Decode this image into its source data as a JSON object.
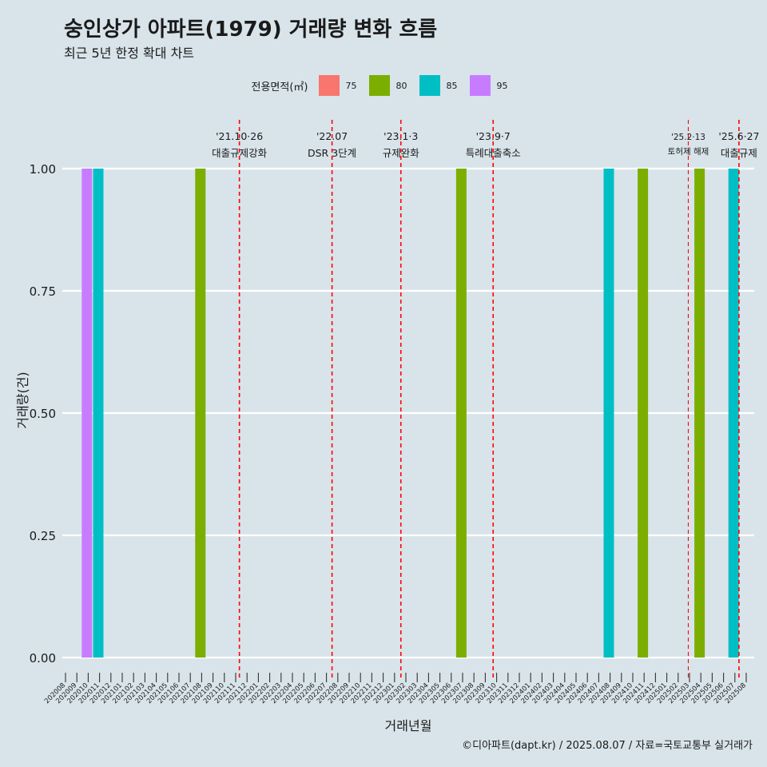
{
  "title": "숭인상가 아파트(1979) 거래량 변화 흐름",
  "subtitle": "최근 5년 한정 확대 차트",
  "caption": "©디아파트(dapt.kr) / 2025.08.07 / 자료=국토교통부 실거래가",
  "legend": {
    "title": "전용면적(㎡)",
    "items": [
      {
        "label": "75",
        "color": "#F8766D"
      },
      {
        "label": "80",
        "color": "#7CAE00"
      },
      {
        "label": "85",
        "color": "#00BFC4"
      },
      {
        "label": "95",
        "color": "#C77CFF"
      }
    ]
  },
  "chart_data": {
    "type": "bar",
    "xlabel": "거래년월",
    "ylabel": "거래량(건)",
    "ylim": [
      0,
      1
    ],
    "yticks": [
      "0.00",
      "0.25",
      "0.50",
      "0.75",
      "1.00"
    ],
    "grid": true,
    "legend_position": "top",
    "categories": [
      "202008",
      "202009",
      "202010",
      "202011",
      "202012",
      "202101",
      "202102",
      "202103",
      "202104",
      "202105",
      "202106",
      "202107",
      "202108",
      "202109",
      "202110",
      "202111",
      "202112",
      "202201",
      "202202",
      "202203",
      "202204",
      "202205",
      "202206",
      "202207",
      "202208",
      "202209",
      "202210",
      "202211",
      "202212",
      "202301",
      "202302",
      "202303",
      "202304",
      "202305",
      "202306",
      "202307",
      "202308",
      "202309",
      "202310",
      "202311",
      "202312",
      "202401",
      "202402",
      "202403",
      "202404",
      "202405",
      "202406",
      "202407",
      "202408",
      "202409",
      "202410",
      "202411",
      "202412",
      "202501",
      "202502",
      "202503",
      "202504",
      "202505",
      "202506",
      "202507",
      "202508"
    ],
    "bars": [
      {
        "month": "202009",
        "area": "95",
        "value": 1
      },
      {
        "month": "202010",
        "area": "85",
        "value": 1
      },
      {
        "month": "202107",
        "area": "80",
        "value": 1
      },
      {
        "month": "202306",
        "area": "80",
        "value": 1
      },
      {
        "month": "202407",
        "area": "85",
        "value": 1
      },
      {
        "month": "202410",
        "area": "80",
        "value": 1
      },
      {
        "month": "202503",
        "area": "80",
        "value": 1
      },
      {
        "month": "202506",
        "area": "85",
        "value": 1
      }
    ],
    "annotations": [
      {
        "date": "2021-10-26",
        "line1": "'21.10·26",
        "line2": "대출규제강화",
        "style": "major"
      },
      {
        "date": "2022-07",
        "line1": "'22.07",
        "line2": "DSR 3단계",
        "style": "major"
      },
      {
        "date": "2023-01-03",
        "line1": "'23.1·3",
        "line2": "규제완화",
        "style": "major"
      },
      {
        "date": "2023-09-07",
        "line1": "'23.9·7",
        "line2": "특례대출축소",
        "style": "major"
      },
      {
        "date": "2025-02-13",
        "line1": "'25.2·13",
        "line2": "토허제 해제",
        "style": "minor"
      },
      {
        "date": "2025-06-27",
        "line1": "'25.6·27",
        "line2": "대출규제",
        "style": "major"
      }
    ]
  }
}
